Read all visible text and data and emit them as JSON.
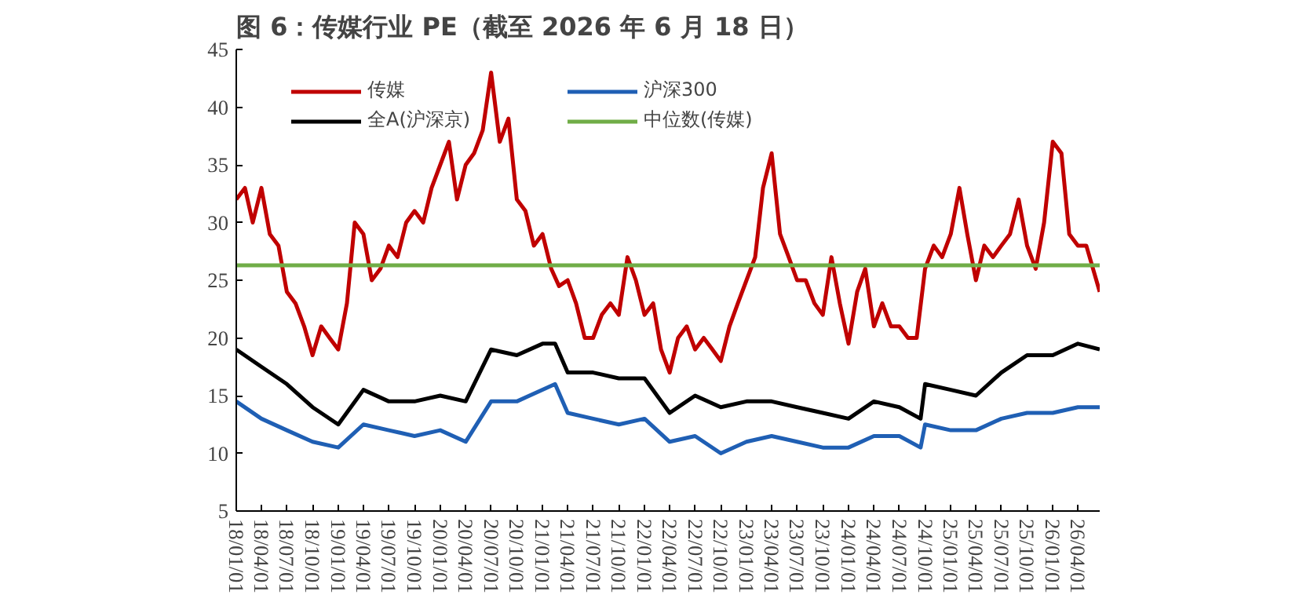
{
  "chart_data": {
    "type": "line",
    "title": "图 6：传媒行业 PE（截至 2026 年 6 月 18 日）",
    "legend": "top",
    "grid": false,
    "xlim": [
      "2018-01-01",
      "2026-06-18"
    ],
    "xticks": [
      {
        "value": "2018-01-01",
        "label": "18/01/01"
      },
      {
        "value": "2018-04-01",
        "label": "18/04/01"
      },
      {
        "value": "2018-07-01",
        "label": "18/07/01"
      },
      {
        "value": "2018-10-01",
        "label": "18/10/01"
      },
      {
        "value": "2019-01-01",
        "label": "19/01/01"
      },
      {
        "value": "2019-04-01",
        "label": "19/04/01"
      },
      {
        "value": "2019-07-01",
        "label": "19/07/01"
      },
      {
        "value": "2019-10-01",
        "label": "19/10/01"
      },
      {
        "value": "2020-01-01",
        "label": "20/01/01"
      },
      {
        "value": "2020-04-01",
        "label": "20/04/01"
      },
      {
        "value": "2020-07-01",
        "label": "20/07/01"
      },
      {
        "value": "2020-10-01",
        "label": "20/10/01"
      },
      {
        "value": "2021-01-01",
        "label": "21/01/01"
      },
      {
        "value": "2021-04-01",
        "label": "21/04/01"
      },
      {
        "value": "2021-07-01",
        "label": "21/07/01"
      },
      {
        "value": "2021-10-01",
        "label": "21/10/01"
      },
      {
        "value": "2022-01-01",
        "label": "22/01/01"
      },
      {
        "value": "2022-04-01",
        "label": "22/04/01"
      },
      {
        "value": "2022-07-01",
        "label": "22/07/01"
      },
      {
        "value": "2022-10-01",
        "label": "22/10/01"
      },
      {
        "value": "2023-01-01",
        "label": "23/01/01"
      },
      {
        "value": "2023-04-01",
        "label": "23/04/01"
      },
      {
        "value": "2023-07-01",
        "label": "23/07/01"
      },
      {
        "value": "2023-10-01",
        "label": "23/10/01"
      },
      {
        "value": "2024-01-01",
        "label": "24/01/01"
      },
      {
        "value": "2024-04-01",
        "label": "24/04/01"
      },
      {
        "value": "2024-07-01",
        "label": "24/07/01"
      },
      {
        "value": "2024-10-01",
        "label": "24/10/01"
      },
      {
        "value": "2025-01-01",
        "label": "25/01/01"
      },
      {
        "value": "2025-04-01",
        "label": "25/04/01"
      },
      {
        "value": "2025-07-01",
        "label": "25/07/01"
      },
      {
        "value": "2025-10-01",
        "label": "25/10/01"
      },
      {
        "value": "2026-01-01",
        "label": "26/01/01"
      },
      {
        "value": "2026-04-01",
        "label": "26/04/01"
      }
    ],
    "ylim": [
      5,
      45
    ],
    "yticks": [
      5,
      10,
      15,
      20,
      25,
      30,
      35,
      40,
      45
    ],
    "series": [
      {
        "name": "传媒",
        "color": "#c00000",
        "x": [
          "2018-01-01",
          "2018-02-01",
          "2018-03-01",
          "2018-04-01",
          "2018-05-01",
          "2018-06-01",
          "2018-07-01",
          "2018-08-01",
          "2018-09-01",
          "2018-10-01",
          "2018-11-01",
          "2018-12-01",
          "2019-01-01",
          "2019-02-01",
          "2019-03-01",
          "2019-04-01",
          "2019-05-01",
          "2019-06-01",
          "2019-07-01",
          "2019-08-01",
          "2019-09-01",
          "2019-10-01",
          "2019-11-01",
          "2019-12-01",
          "2020-01-01",
          "2020-02-01",
          "2020-03-01",
          "2020-04-01",
          "2020-05-01",
          "2020-06-01",
          "2020-07-01",
          "2020-08-01",
          "2020-09-01",
          "2020-10-01",
          "2020-11-01",
          "2020-12-01",
          "2021-01-01",
          "2021-02-01",
          "2021-03-01",
          "2021-04-01",
          "2021-05-01",
          "2021-06-01",
          "2021-07-01",
          "2021-08-01",
          "2021-09-01",
          "2021-10-01",
          "2021-11-01",
          "2021-12-01",
          "2022-01-01",
          "2022-02-01",
          "2022-03-01",
          "2022-04-01",
          "2022-05-01",
          "2022-06-01",
          "2022-07-01",
          "2022-08-01",
          "2022-09-01",
          "2022-10-01",
          "2022-11-01",
          "2022-12-01",
          "2023-01-01",
          "2023-02-01",
          "2023-03-01",
          "2023-04-01",
          "2023-05-01",
          "2023-06-01",
          "2023-07-01",
          "2023-08-01",
          "2023-09-01",
          "2023-10-01",
          "2023-11-01",
          "2023-12-01",
          "2024-01-01",
          "2024-02-01",
          "2024-03-01",
          "2024-04-01",
          "2024-05-01",
          "2024-06-01",
          "2024-07-01",
          "2024-08-01",
          "2024-09-01",
          "2024-10-01",
          "2024-11-01",
          "2024-12-01",
          "2025-01-01",
          "2025-02-01",
          "2025-03-01",
          "2025-04-01",
          "2025-05-01",
          "2025-06-01",
          "2025-07-01",
          "2025-08-01",
          "2025-09-01",
          "2025-10-01",
          "2025-11-01",
          "2025-12-01",
          "2026-01-01",
          "2026-02-01",
          "2026-03-01",
          "2026-04-01",
          "2026-05-01",
          "2026-06-18"
        ],
        "values": [
          32,
          33,
          30,
          33,
          29,
          28,
          24,
          23,
          21,
          18.5,
          21,
          20,
          19,
          23,
          30,
          29,
          25,
          26,
          28,
          27,
          30,
          31,
          30,
          33,
          35,
          37,
          32,
          35,
          36,
          38,
          43,
          37,
          39,
          32,
          31,
          28,
          29,
          26,
          24.5,
          25,
          23,
          20,
          20,
          22,
          23,
          22,
          27,
          25,
          22,
          23,
          19,
          17,
          20,
          21,
          19,
          20,
          19,
          18,
          21,
          23,
          25,
          27,
          33,
          36,
          29,
          27,
          25,
          25,
          23,
          22,
          27,
          23,
          19.5,
          24,
          26,
          21,
          23,
          21,
          21,
          20,
          20,
          26,
          28,
          27,
          29,
          33,
          29,
          25,
          28,
          27,
          28,
          29,
          32,
          28,
          26,
          30,
          37,
          36,
          29,
          28,
          28,
          24
        ]
      },
      {
        "name": "全A(沪深京)",
        "color": "#000000",
        "x": [
          "2018-01-01",
          "2018-04-01",
          "2018-07-01",
          "2018-10-01",
          "2019-01-01",
          "2019-04-01",
          "2019-07-01",
          "2019-10-01",
          "2020-01-01",
          "2020-04-01",
          "2020-07-01",
          "2020-10-01",
          "2021-01-01",
          "2021-02-15",
          "2021-04-01",
          "2021-07-01",
          "2021-10-01",
          "2022-01-01",
          "2022-04-01",
          "2022-07-01",
          "2022-10-01",
          "2023-01-01",
          "2023-04-01",
          "2023-07-01",
          "2023-10-01",
          "2024-01-01",
          "2024-04-01",
          "2024-07-01",
          "2024-09-15",
          "2024-10-01",
          "2025-01-01",
          "2025-04-01",
          "2025-07-01",
          "2025-10-01",
          "2026-01-01",
          "2026-04-01",
          "2026-06-18"
        ],
        "values": [
          19,
          17.5,
          16,
          14,
          12.5,
          15.5,
          14.5,
          14.5,
          15,
          14.5,
          19,
          18.5,
          19.5,
          19.5,
          17,
          17,
          16.5,
          16.5,
          13.5,
          15,
          14,
          14.5,
          14.5,
          14,
          13.5,
          13,
          14.5,
          14,
          13,
          16,
          15.5,
          15,
          17,
          18.5,
          18.5,
          19.5,
          19
        ]
      },
      {
        "name": "沪深300",
        "color": "#1f5fb4",
        "x": [
          "2018-01-01",
          "2018-04-01",
          "2018-07-01",
          "2018-10-01",
          "2019-01-01",
          "2019-04-01",
          "2019-07-01",
          "2019-10-01",
          "2020-01-01",
          "2020-04-01",
          "2020-07-01",
          "2020-10-01",
          "2021-02-15",
          "2021-04-01",
          "2021-07-01",
          "2021-10-01",
          "2022-01-01",
          "2022-04-01",
          "2022-07-01",
          "2022-10-01",
          "2023-01-01",
          "2023-04-01",
          "2023-07-01",
          "2023-10-01",
          "2024-01-01",
          "2024-04-01",
          "2024-07-01",
          "2024-09-15",
          "2024-10-01",
          "2025-01-01",
          "2025-04-01",
          "2025-07-01",
          "2025-10-01",
          "2026-01-01",
          "2026-04-01",
          "2026-06-18"
        ],
        "values": [
          14.5,
          13,
          12,
          11,
          10.5,
          12.5,
          12,
          11.5,
          12,
          11,
          14.5,
          14.5,
          16,
          13.5,
          13,
          12.5,
          13,
          11,
          11.5,
          10,
          11,
          11.5,
          11,
          10.5,
          10.5,
          11.5,
          11.5,
          10.5,
          12.5,
          12,
          12,
          13,
          13.5,
          13.5,
          14,
          14
        ]
      },
      {
        "name": "中位数(传媒)",
        "color": "#70ad47",
        "x": [
          "2018-01-01",
          "2026-06-18"
        ],
        "values": [
          26.3,
          26.3
        ]
      }
    ]
  }
}
